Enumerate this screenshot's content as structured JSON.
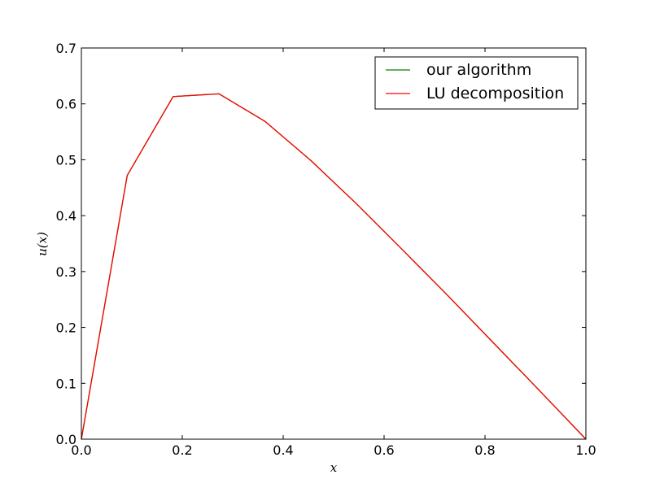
{
  "chart_data": {
    "type": "line",
    "title": "",
    "xlabel": "x",
    "ylabel": "u(x)",
    "xlim": [
      0.0,
      1.0
    ],
    "ylim": [
      0.0,
      0.7
    ],
    "xticks": [
      0.0,
      0.2,
      0.4,
      0.6,
      0.8,
      1.0
    ],
    "xtick_labels": [
      "0.0",
      "0.2",
      "0.4",
      "0.6",
      "0.8",
      "1.0"
    ],
    "yticks": [
      0.0,
      0.1,
      0.2,
      0.3,
      0.4,
      0.5,
      0.6,
      0.7
    ],
    "ytick_labels": [
      "0.0",
      "0.1",
      "0.2",
      "0.3",
      "0.4",
      "0.5",
      "0.6",
      "0.7"
    ],
    "grid": false,
    "legend_position": "top-right",
    "x": [
      0.0,
      0.0909,
      0.1818,
      0.2727,
      0.3636,
      0.4545,
      0.5455,
      0.6364,
      0.7273,
      0.8182,
      0.9091,
      1.0
    ],
    "series": [
      {
        "name": "our algorithm",
        "color": "#008000",
        "values": [
          0.0,
          0.472,
          0.613,
          0.618,
          0.569,
          0.499,
          0.421,
          0.339,
          0.256,
          0.171,
          0.086,
          0.0
        ]
      },
      {
        "name": "LU decomposition",
        "color": "#ff0000",
        "values": [
          0.0,
          0.472,
          0.613,
          0.618,
          0.569,
          0.499,
          0.421,
          0.339,
          0.256,
          0.171,
          0.086,
          0.0
        ]
      }
    ]
  }
}
